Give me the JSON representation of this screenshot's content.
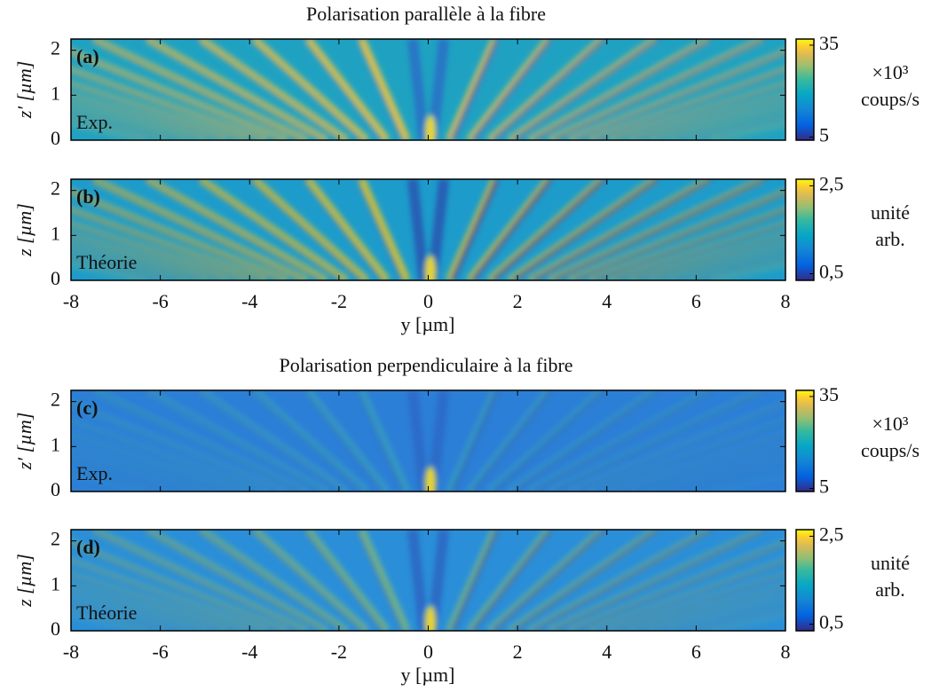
{
  "chart_data": [
    {
      "type": "heatmap",
      "title": "Polarisation parallèle à la fibre",
      "panel_label": "(a)",
      "annotation": "Exp.",
      "ylabel": "z′ [µm]",
      "xlim": [
        -8,
        8
      ],
      "xticks": [
        -8,
        -6,
        -4,
        -2,
        0,
        2,
        4,
        6,
        8
      ],
      "show_xtick_labels": false,
      "ylim": [
        0,
        2.25
      ],
      "yticks": [
        0,
        1,
        2
      ],
      "colormap": "parula",
      "colorbar": {
        "clim": [
          4,
          37
        ],
        "ticks": [
          5,
          35
        ],
        "label": [
          "×10³",
          "coups/s"
        ]
      }
    },
    {
      "type": "heatmap",
      "panel_label": "(b)",
      "annotation": "Théorie",
      "ylabel": "z [µm]",
      "xlabel": "y [µm]",
      "xlim": [
        -8,
        8
      ],
      "xticks": [
        -8,
        -6,
        -4,
        -2,
        0,
        2,
        4,
        6,
        8
      ],
      "show_xtick_labels": true,
      "ylim": [
        0,
        2.25
      ],
      "yticks": [
        0,
        1,
        2
      ],
      "colormap": "parula",
      "colorbar": {
        "clim": [
          0.35,
          2.65
        ],
        "ticks": [
          {
            "value": 0.5,
            "label": "0,5"
          },
          {
            "value": 2.5,
            "label": "2,5"
          }
        ],
        "label": [
          "unité",
          "arb."
        ]
      }
    },
    {
      "type": "heatmap",
      "title": "Polarisation perpendiculaire à la fibre",
      "panel_label": "(c)",
      "annotation": "Exp.",
      "ylabel": "z′ [µm]",
      "xlim": [
        -8,
        8
      ],
      "xticks": [
        -8,
        -6,
        -4,
        -2,
        0,
        2,
        4,
        6,
        8
      ],
      "show_xtick_labels": false,
      "ylim": [
        0,
        2.25
      ],
      "yticks": [
        0,
        1,
        2
      ],
      "colormap": "parula",
      "colorbar": {
        "clim": [
          4,
          37
        ],
        "ticks": [
          5,
          35
        ],
        "label": [
          "×10³",
          "coups/s"
        ]
      }
    },
    {
      "type": "heatmap",
      "panel_label": "(d)",
      "annotation": "Théorie",
      "ylabel": "z [µm]",
      "xlabel": "y [µm]",
      "xlim": [
        -8,
        8
      ],
      "xticks": [
        -8,
        -6,
        -4,
        -2,
        0,
        2,
        4,
        6,
        8
      ],
      "show_xtick_labels": true,
      "ylim": [
        0,
        2.25
      ],
      "yticks": [
        0,
        1,
        2
      ],
      "colormap": "parula",
      "colorbar": {
        "clim": [
          0.35,
          2.65
        ],
        "ticks": [
          {
            "value": 0.5,
            "label": "0,5"
          },
          {
            "value": 2.5,
            "label": "2,5"
          }
        ],
        "label": [
          "unité",
          "arb."
        ]
      }
    }
  ]
}
